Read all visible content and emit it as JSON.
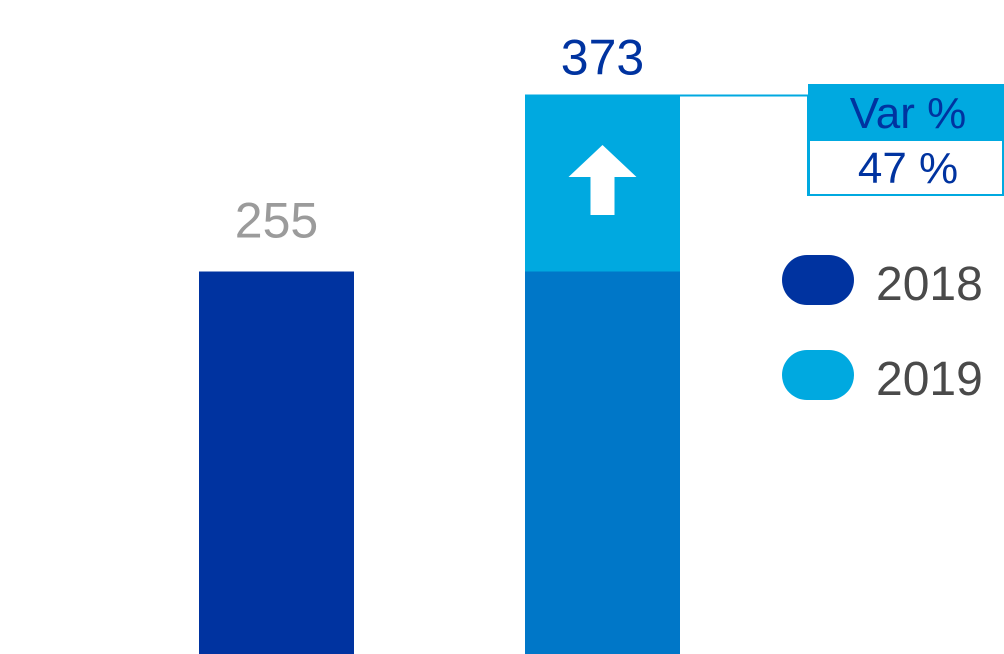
{
  "chart_data": {
    "type": "bar",
    "categories": [
      "2018",
      "2019"
    ],
    "values": [
      255,
      373
    ],
    "value_labels": [
      "255",
      "373"
    ],
    "increase": 118,
    "variation": {
      "header": "Var %",
      "value": "47 %"
    },
    "legend": {
      "position": "right",
      "items": [
        "2018",
        "2019"
      ]
    },
    "grid": false,
    "colors": {
      "bar_2018": "#0033a0",
      "bar_2019_base": "#0077c8",
      "bar_2019_increase": "#00a9e0",
      "label_2018": "#9b9b9b",
      "label_2019": "#0033a0",
      "legend_2018": "#0033a0",
      "legend_2019": "#00a9e0"
    },
    "icons": {
      "increase": "arrow-up-icon"
    }
  }
}
